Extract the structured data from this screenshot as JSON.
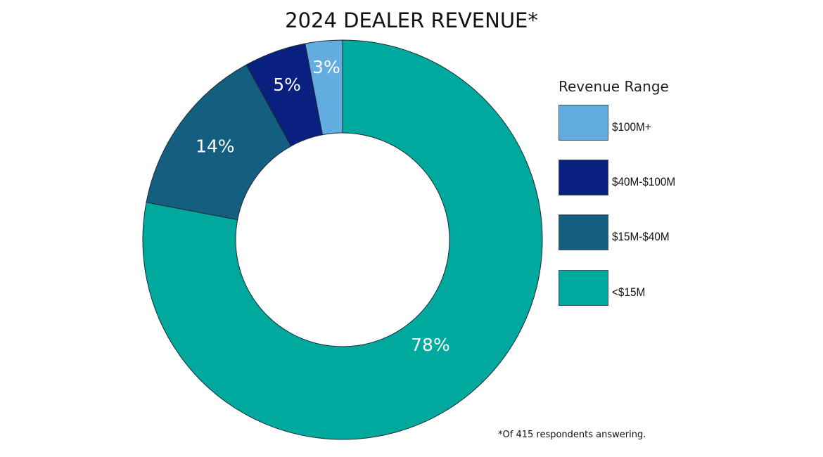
{
  "chart_data": {
    "type": "pie",
    "donut": true,
    "title": "2024 DEALER REVENUE*",
    "legend_title": "Revenue Range",
    "legend_position": "right",
    "slices": [
      {
        "name": "<$15M",
        "value": 78,
        "label": "78%",
        "color": "#00A99D"
      },
      {
        "name": "$15M-$40M",
        "value": 14,
        "label": "14%",
        "color": "#145E80"
      },
      {
        "name": "$40M-$100M",
        "value": 5,
        "label": "5%",
        "color": "#0A2080"
      },
      {
        "name": "$100M+",
        "value": 3,
        "label": "3%",
        "color": "#62ACE0"
      }
    ],
    "legend_order": [
      3,
      2,
      1,
      0
    ],
    "footnote": "*Of 415 respondents answering."
  }
}
